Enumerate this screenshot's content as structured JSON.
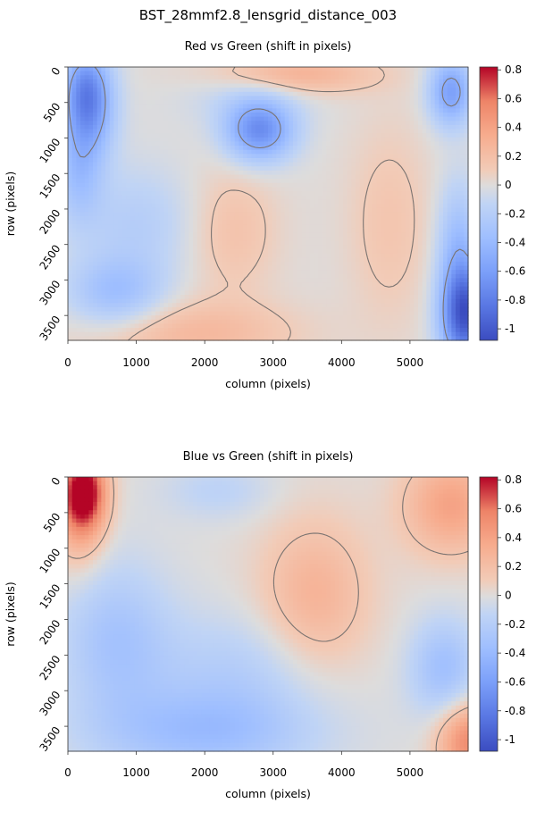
{
  "figure_title": "BST_28mmf2.8_lensgrid_distance_003",
  "chart_data": [
    {
      "type": "heatmap",
      "title": "Red vs Green (shift in pixels)",
      "xlabel": "column (pixels)",
      "ylabel": "row (pixels)",
      "xlim": [
        0,
        5850
      ],
      "ylim": [
        3850,
        0
      ],
      "xticks": [
        0,
        1000,
        2000,
        3000,
        4000,
        5000
      ],
      "yticks": [
        0,
        500,
        1000,
        1500,
        2000,
        2500,
        3000,
        3500
      ],
      "colorbar": {
        "colormap": "coolwarm",
        "range": [
          -1.08,
          0.82
        ],
        "ticks": [
          0.8,
          0.6,
          0.4,
          0.2,
          0,
          -0.2,
          -0.4,
          -0.6,
          -0.8,
          -1
        ]
      },
      "contour_levels": [
        -0.5,
        0.1
      ],
      "grid": false,
      "features": [
        {
          "x": 300,
          "y": 550,
          "value": -0.65,
          "radius_x": 380,
          "radius_y": 700
        },
        {
          "x": 250,
          "y": 200,
          "value": -0.25,
          "radius_x": 300,
          "radius_y": 500
        },
        {
          "x": 150,
          "y": 1500,
          "value": -0.3,
          "radius_x": 350,
          "radius_y": 700
        },
        {
          "x": 2800,
          "y": 900,
          "value": -0.7,
          "radius_x": 500,
          "radius_y": 430
        },
        {
          "x": 2600,
          "y": 300,
          "value": -0.15,
          "radius_x": 900,
          "radius_y": 500
        },
        {
          "x": 5600,
          "y": 350,
          "value": -0.6,
          "radius_x": 320,
          "radius_y": 480
        },
        {
          "x": 5800,
          "y": 3500,
          "value": -1.0,
          "radius_x": 350,
          "radius_y": 700
        },
        {
          "x": 5700,
          "y": 2500,
          "value": -0.35,
          "radius_x": 300,
          "radius_y": 900
        },
        {
          "x": 700,
          "y": 3200,
          "value": -0.35,
          "radius_x": 700,
          "radius_y": 500
        },
        {
          "x": 3200,
          "y": 100,
          "value": 0.35,
          "radius_x": 1200,
          "radius_y": 280
        },
        {
          "x": 1800,
          "y": 3750,
          "value": 0.25,
          "radius_x": 1500,
          "radius_y": 450
        },
        {
          "x": 2400,
          "y": 2300,
          "value": 0.18,
          "radius_x": 650,
          "radius_y": 900
        },
        {
          "x": 4700,
          "y": 2200,
          "value": 0.15,
          "radius_x": 600,
          "radius_y": 1400
        },
        {
          "x": 1000,
          "y": 2200,
          "value": -0.2,
          "radius_x": 900,
          "radius_y": 800
        }
      ]
    },
    {
      "type": "heatmap",
      "title": "Blue vs Green (shift in pixels)",
      "xlabel": "column (pixels)",
      "ylabel": "row (pixels)",
      "xlim": [
        0,
        5850
      ],
      "ylim": [
        3850,
        0
      ],
      "xticks": [
        0,
        1000,
        2000,
        3000,
        4000,
        5000
      ],
      "yticks": [
        0,
        500,
        1000,
        1500,
        2000,
        2500,
        3000,
        3500
      ],
      "colorbar": {
        "colormap": "coolwarm",
        "range": [
          -1.08,
          0.82
        ],
        "ticks": [
          0.8,
          0.6,
          0.4,
          0.2,
          0,
          -0.2,
          -0.4,
          -0.6,
          -0.8,
          -1
        ]
      },
      "contour_levels": [
        -0.5,
        0.15
      ],
      "grid": false,
      "features": [
        {
          "x": 230,
          "y": 200,
          "value": 0.9,
          "radius_x": 320,
          "radius_y": 550
        },
        {
          "x": 150,
          "y": 700,
          "value": 0.25,
          "radius_x": 400,
          "radius_y": 700
        },
        {
          "x": 5600,
          "y": 400,
          "value": 0.4,
          "radius_x": 700,
          "radius_y": 700
        },
        {
          "x": 3600,
          "y": 1700,
          "value": 0.3,
          "radius_x": 800,
          "radius_y": 1100
        },
        {
          "x": 5850,
          "y": 3700,
          "value": 0.55,
          "radius_x": 450,
          "radius_y": 550
        },
        {
          "x": 2000,
          "y": 3600,
          "value": -0.35,
          "radius_x": 1600,
          "radius_y": 600
        },
        {
          "x": 700,
          "y": 2300,
          "value": -0.3,
          "radius_x": 800,
          "radius_y": 1100
        },
        {
          "x": 5500,
          "y": 2700,
          "value": -0.35,
          "radius_x": 500,
          "radius_y": 700
        },
        {
          "x": 2500,
          "y": 2700,
          "value": -0.2,
          "radius_x": 1300,
          "radius_y": 800
        },
        {
          "x": 2200,
          "y": 200,
          "value": -0.15,
          "radius_x": 800,
          "radius_y": 400
        }
      ]
    }
  ]
}
